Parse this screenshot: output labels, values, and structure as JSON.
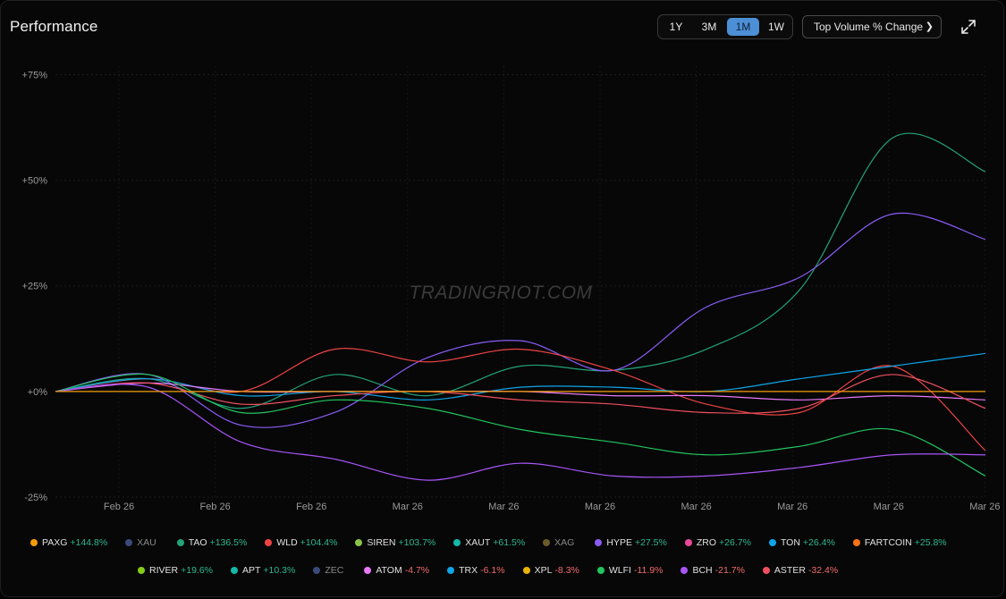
{
  "header": {
    "title": "Performance",
    "ranges": [
      {
        "label": "1Y",
        "active": false
      },
      {
        "label": "3M",
        "active": false
      },
      {
        "label": "1M",
        "active": true
      },
      {
        "label": "1W",
        "active": false
      }
    ],
    "sort_select": "Top Volume % Change",
    "expand_icon": "expand-arrows-icon"
  },
  "watermark": "TRADINGRIOT.COM",
  "chart_data": {
    "type": "line",
    "title": "Performance",
    "xlabel": "",
    "ylabel": "",
    "ylim": [
      -25,
      77
    ],
    "y_ticks": [
      75,
      50,
      25,
      0,
      -25
    ],
    "y_tick_labels": [
      "+75%",
      "+50%",
      "+25%",
      "+0%",
      "-25%"
    ],
    "x_tick_labels": [
      "Feb 26",
      "Feb 26",
      "Feb 26",
      "Mar 26",
      "Mar 26",
      "Mar 26",
      "Mar 26",
      "Mar 26",
      "Mar 26",
      "Mar 26"
    ],
    "grid": true,
    "legend": "bottom",
    "x": [
      0,
      3,
      6,
      9,
      12,
      15,
      18,
      21,
      24,
      27,
      30
    ],
    "series": [
      {
        "name": "PAXG",
        "color": "#f59e0b",
        "values": [
          0,
          0,
          0,
          0,
          0,
          0,
          0,
          0,
          0,
          0,
          0
        ]
      },
      {
        "name": "TAO",
        "color": "#22a37a",
        "values": [
          0,
          3,
          -4,
          4,
          -1,
          6,
          5,
          10,
          24,
          60,
          52
        ]
      },
      {
        "name": "HYPE",
        "color": "#8b5cf6",
        "values": [
          0,
          4,
          -8,
          -5,
          8,
          12,
          5,
          20,
          27,
          42,
          36
        ]
      },
      {
        "name": "WLD",
        "color": "#ef4444",
        "values": [
          0,
          3,
          0,
          10,
          7,
          10,
          5,
          -3,
          -5,
          6,
          -14
        ]
      },
      {
        "name": "TON",
        "color": "#0ea5e9",
        "values": [
          0,
          3,
          -1,
          0,
          -2,
          1,
          1,
          0,
          3,
          6,
          9
        ]
      },
      {
        "name": "ATOM",
        "color": "#e879f9",
        "values": [
          0,
          2,
          0,
          0,
          0,
          0,
          -1,
          -1,
          -2,
          -1,
          -2
        ]
      },
      {
        "name": "ASTER",
        "color": "#f0505f",
        "values": [
          0,
          2,
          -3,
          -1,
          0,
          -2,
          -3,
          -5,
          -4,
          4,
          -4
        ]
      },
      {
        "name": "WLFI",
        "color": "#22c55e",
        "values": [
          0,
          4,
          -5,
          -2,
          -4,
          -9,
          -12,
          -15,
          -13,
          -9,
          -20
        ]
      },
      {
        "name": "BCH",
        "color": "#a855f7",
        "values": [
          0,
          1,
          -12,
          -16,
          -21,
          -17,
          -20,
          -20,
          -18,
          -15,
          -15
        ]
      }
    ]
  },
  "legend": [
    [
      {
        "symbol": "PAXG",
        "change": "+144.8%",
        "color": "#f59e0b",
        "dim": false
      },
      {
        "symbol": "XAU",
        "change": "",
        "color": "#3b4a7a",
        "dim": true
      },
      {
        "symbol": "TAO",
        "change": "+136.5%",
        "color": "#22a37a",
        "dim": false
      },
      {
        "symbol": "WLD",
        "change": "+104.4%",
        "color": "#ef4444",
        "dim": false
      },
      {
        "symbol": "SIREN",
        "change": "+103.7%",
        "color": "#8bc34a",
        "dim": false
      },
      {
        "symbol": "XAUT",
        "change": "+61.5%",
        "color": "#14b8a6",
        "dim": false
      },
      {
        "symbol": "XAG",
        "change": "",
        "color": "#6b5a2a",
        "dim": true
      },
      {
        "symbol": "HYPE",
        "change": "+27.5%",
        "color": "#8b5cf6",
        "dim": false
      },
      {
        "symbol": "ZRO",
        "change": "+26.7%",
        "color": "#ec4899",
        "dim": false
      },
      {
        "symbol": "TON",
        "change": "+26.4%",
        "color": "#0ea5e9",
        "dim": false
      },
      {
        "symbol": "FARTCOIN",
        "change": "+25.8%",
        "color": "#f97316",
        "dim": false
      }
    ],
    [
      {
        "symbol": "RIVER",
        "change": "+19.6%",
        "color": "#84cc16",
        "dim": false
      },
      {
        "symbol": "APT",
        "change": "+10.3%",
        "color": "#14b8a6",
        "dim": false
      },
      {
        "symbol": "ZEC",
        "change": "",
        "color": "#3b4a7a",
        "dim": true
      },
      {
        "symbol": "ATOM",
        "change": "-4.7%",
        "color": "#e879f9",
        "dim": false
      },
      {
        "symbol": "TRX",
        "change": "-6.1%",
        "color": "#0ea5e9",
        "dim": false
      },
      {
        "symbol": "XPL",
        "change": "-8.3%",
        "color": "#eab308",
        "dim": false
      },
      {
        "symbol": "WLFI",
        "change": "-11.9%",
        "color": "#22c55e",
        "dim": false
      },
      {
        "symbol": "BCH",
        "change": "-21.7%",
        "color": "#a855f7",
        "dim": false
      },
      {
        "symbol": "ASTER",
        "change": "-32.4%",
        "color": "#f0505f",
        "dim": false
      }
    ]
  ]
}
